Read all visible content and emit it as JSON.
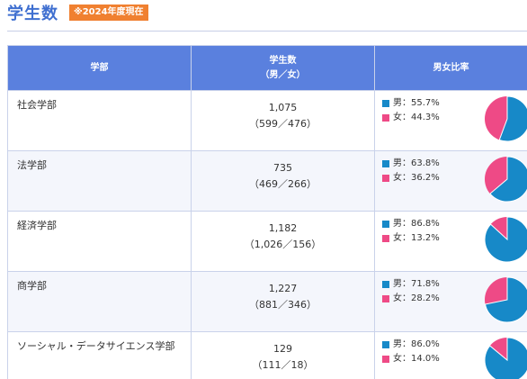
{
  "page": {
    "title": "学生数",
    "badge": "※2024年度現在"
  },
  "table": {
    "headers": {
      "faculty": "学部",
      "count_line1": "学生数",
      "count_line2": "（男／女）",
      "ratio": "男女比率"
    },
    "rows": [
      {
        "faculty": "社会学部",
        "total": "1,075",
        "breakdown": "（599／476）",
        "male_label": "男：55.7%",
        "female_label": "女：44.3%",
        "male_ratio": 55.7
      },
      {
        "faculty": "法学部",
        "total": "735",
        "breakdown": "（469／266）",
        "male_label": "男：63.8%",
        "female_label": "女：36.2%",
        "male_ratio": 63.8
      },
      {
        "faculty": "経済学部",
        "total": "1,182",
        "breakdown": "（1,026／156）",
        "male_label": "男：86.8%",
        "female_label": "女：13.2%",
        "male_ratio": 86.8
      },
      {
        "faculty": "商学部",
        "total": "1,227",
        "breakdown": "（881／346）",
        "male_label": "男：71.8%",
        "female_label": "女：28.2%",
        "male_ratio": 71.8
      },
      {
        "faculty": "ソーシャル・データサイエンス学部",
        "total": "129",
        "breakdown": "（111／18）",
        "male_label": "男：86.0%",
        "female_label": "女：14.0%",
        "male_ratio": 86.0
      }
    ]
  },
  "colors": {
    "male": "#1789c8",
    "female": "#ee4a86",
    "header_bg": "#5a80de",
    "title": "#3f6fd0",
    "badge": "#f08030"
  }
}
